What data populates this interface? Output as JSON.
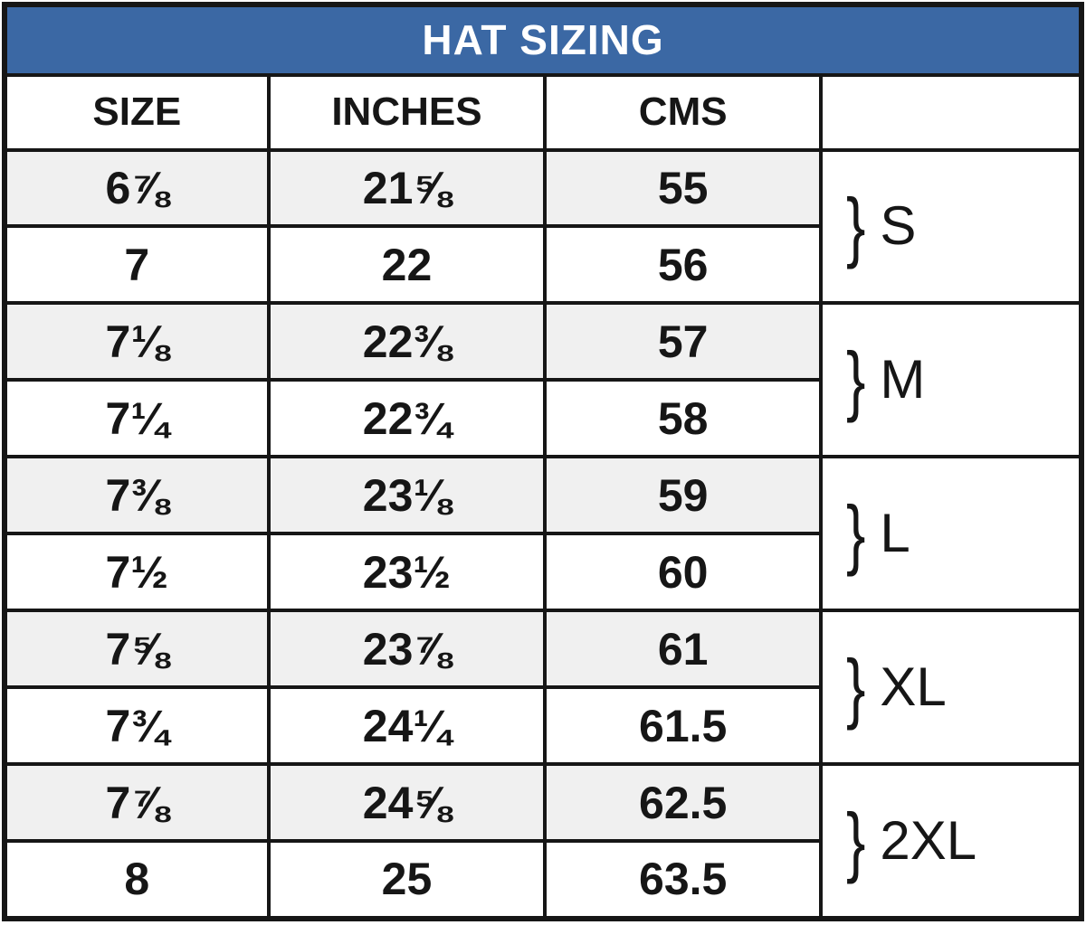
{
  "title": "HAT SIZING",
  "header": {
    "size": "SIZE",
    "inches": "INCHES",
    "cms": "CMS",
    "group": ""
  },
  "rows": [
    {
      "size": "6⅞",
      "inches": "21⅝",
      "cms": "55"
    },
    {
      "size": "7",
      "inches": "22",
      "cms": "56"
    },
    {
      "size": "7⅛",
      "inches": "22⅜",
      "cms": "57"
    },
    {
      "size": "7¼",
      "inches": "22¾",
      "cms": "58"
    },
    {
      "size": "7⅜",
      "inches": "23⅛",
      "cms": "59"
    },
    {
      "size": "7½",
      "inches": "23½",
      "cms": "60"
    },
    {
      "size": "7⅝",
      "inches": "23⅞",
      "cms": "61"
    },
    {
      "size": "7¾",
      "inches": "24¼",
      "cms": "61.5"
    },
    {
      "size": "7⅞",
      "inches": "24⅝",
      "cms": "62.5"
    },
    {
      "size": "8",
      "inches": "25",
      "cms": "63.5"
    }
  ],
  "groups": [
    {
      "brace": "}",
      "label": "S"
    },
    {
      "brace": "}",
      "label": "M"
    },
    {
      "brace": "}",
      "label": "L"
    },
    {
      "brace": "}",
      "label": "XL"
    },
    {
      "brace": "}",
      "label": "2XL"
    }
  ],
  "colors": {
    "title_bg": "#3b68a4",
    "title_text": "#ffffff",
    "border": "#161616",
    "row_alt_bg": "#f0f0f0",
    "row_bg": "#ffffff",
    "text": "#161616"
  }
}
